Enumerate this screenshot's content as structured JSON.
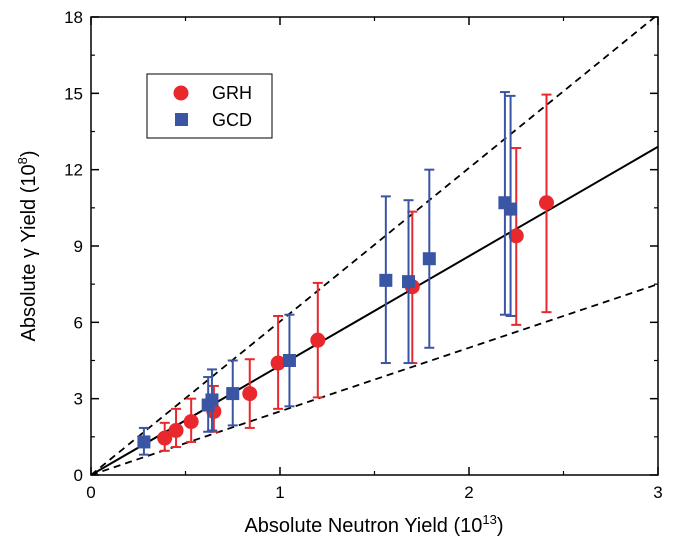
{
  "chart_data": {
    "type": "scatter",
    "xlabel": "Absolute Neutron Yield (10",
    "xlabel_exp": "13",
    "xlabel_end": ")",
    "ylabel": "Absolute γ Yield (10",
    "ylabel_exp": "8",
    "ylabel_end": ")",
    "xlim": [
      0,
      3
    ],
    "ylim": [
      0,
      18
    ],
    "x_ticks": [
      0,
      1,
      2,
      3
    ],
    "x_tick_labels": [
      "0",
      "1",
      "2",
      "3"
    ],
    "y_ticks": [
      0,
      3,
      6,
      9,
      12,
      15,
      18
    ],
    "y_tick_labels": [
      "0",
      "3",
      "6",
      "9",
      "12",
      "15",
      "18"
    ],
    "grid": false,
    "legend_position": "top-left",
    "series": [
      {
        "name": "GRH",
        "marker": "circle",
        "color": "#e8282d",
        "points": [
          {
            "x": 0.39,
            "y": 1.45,
            "lo": 0.95,
            "hi": 2.05
          },
          {
            "x": 0.45,
            "y": 1.75,
            "lo": 1.1,
            "hi": 2.6
          },
          {
            "x": 0.53,
            "y": 2.1,
            "lo": 1.3,
            "hi": 3.0
          },
          {
            "x": 0.65,
            "y": 2.5,
            "lo": 1.7,
            "hi": 3.5
          },
          {
            "x": 0.84,
            "y": 3.2,
            "lo": 1.85,
            "hi": 4.55
          },
          {
            "x": 0.99,
            "y": 4.4,
            "lo": 2.6,
            "hi": 6.25
          },
          {
            "x": 1.2,
            "y": 5.3,
            "lo": 3.05,
            "hi": 7.55
          },
          {
            "x": 1.7,
            "y": 7.4,
            "lo": 4.4,
            "hi": 10.35
          },
          {
            "x": 2.25,
            "y": 9.4,
            "lo": 5.9,
            "hi": 12.85
          },
          {
            "x": 2.41,
            "y": 10.7,
            "lo": 6.4,
            "hi": 14.95
          }
        ]
      },
      {
        "name": "GCD",
        "marker": "square",
        "color": "#3a55a4",
        "points": [
          {
            "x": 0.28,
            "y": 1.3,
            "lo": 0.8,
            "hi": 1.85
          },
          {
            "x": 0.62,
            "y": 2.75,
            "lo": 1.7,
            "hi": 3.85
          },
          {
            "x": 0.64,
            "y": 2.95,
            "lo": 1.75,
            "hi": 4.15
          },
          {
            "x": 0.75,
            "y": 3.2,
            "lo": 1.95,
            "hi": 4.5
          },
          {
            "x": 1.05,
            "y": 4.5,
            "lo": 2.7,
            "hi": 6.3
          },
          {
            "x": 1.56,
            "y": 7.65,
            "lo": 4.4,
            "hi": 10.95
          },
          {
            "x": 1.68,
            "y": 7.6,
            "lo": 4.4,
            "hi": 10.8
          },
          {
            "x": 1.79,
            "y": 8.5,
            "lo": 5.0,
            "hi": 12.0
          },
          {
            "x": 2.19,
            "y": 10.7,
            "lo": 6.3,
            "hi": 15.05
          },
          {
            "x": 2.22,
            "y": 10.45,
            "lo": 6.25,
            "hi": 14.9
          }
        ]
      }
    ],
    "lines": [
      {
        "style": "solid",
        "color": "#000000",
        "x": [
          0,
          3
        ],
        "y": [
          0,
          12.9
        ]
      },
      {
        "style": "dashed",
        "color": "#000000",
        "x": [
          0,
          3
        ],
        "y": [
          0,
          18.1
        ]
      },
      {
        "style": "dashed",
        "color": "#000000",
        "x": [
          0,
          3
        ],
        "y": [
          0,
          7.5
        ]
      }
    ]
  }
}
